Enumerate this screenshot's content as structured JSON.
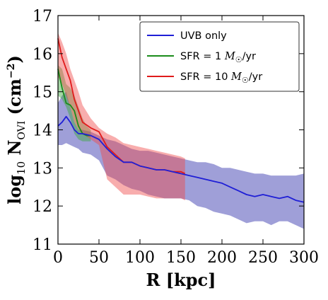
{
  "chart_data": {
    "type": "line",
    "xlabel": "R [kpc]",
    "ylabel_parts": {
      "base": "log",
      "base_sub": "10",
      "symbol": " N",
      "symbol_sub": "OVI",
      "unit": " (cm",
      "unit_sup": "−2",
      "unit_end": ")"
    },
    "xlim": [
      0,
      300
    ],
    "ylim": [
      11,
      17
    ],
    "xticks": [
      0,
      50,
      100,
      150,
      200,
      250,
      300
    ],
    "yticks": [
      11,
      12,
      13,
      14,
      15,
      16,
      17
    ],
    "grid": false,
    "legend_position": "top-right",
    "series": [
      {
        "name": "UVB only",
        "label_parts": {
          "pre": "UVB only",
          "math": "",
          "msub": "",
          "post": ""
        },
        "color": "#1f1fd6",
        "fill": "#2a2aa8",
        "x": [
          0,
          5,
          10,
          15,
          20,
          25,
          30,
          40,
          50,
          60,
          70,
          80,
          90,
          100,
          110,
          120,
          130,
          140,
          150,
          160,
          170,
          180,
          190,
          200,
          210,
          220,
          230,
          240,
          250,
          260,
          270,
          280,
          290,
          300
        ],
        "y": [
          14.1,
          14.2,
          14.35,
          14.2,
          14.0,
          13.9,
          13.9,
          13.85,
          13.75,
          13.5,
          13.3,
          13.15,
          13.15,
          13.05,
          13.0,
          12.95,
          12.95,
          12.9,
          12.85,
          12.8,
          12.75,
          12.7,
          12.65,
          12.6,
          12.5,
          12.4,
          12.3,
          12.25,
          12.3,
          12.25,
          12.2,
          12.25,
          12.15,
          12.1
        ],
        "y_low": [
          13.6,
          13.6,
          13.65,
          13.6,
          13.55,
          13.5,
          13.4,
          13.35,
          13.2,
          12.8,
          12.7,
          12.55,
          12.45,
          12.4,
          12.3,
          12.25,
          12.2,
          12.2,
          12.2,
          12.15,
          12.0,
          11.95,
          11.85,
          11.8,
          11.75,
          11.65,
          11.55,
          11.6,
          11.6,
          11.5,
          11.6,
          11.6,
          11.5,
          11.4
        ],
        "y_high": [
          14.7,
          14.9,
          15.0,
          14.6,
          14.2,
          14.0,
          14.0,
          13.95,
          13.85,
          13.75,
          13.7,
          13.6,
          13.5,
          13.45,
          13.45,
          13.4,
          13.35,
          13.3,
          13.25,
          13.2,
          13.15,
          13.15,
          13.1,
          13.0,
          13.0,
          12.95,
          12.9,
          12.85,
          12.85,
          12.8,
          12.8,
          12.8,
          12.8,
          12.85
        ]
      },
      {
        "name": "SFR = 1 M☉/yr",
        "label_parts": {
          "pre": "SFR = 1 ",
          "math": "M",
          "msub": "☉",
          "post": "/yr"
        },
        "color": "#1b8c1b",
        "fill": "#3aa83a",
        "x": [
          0,
          5,
          10,
          15,
          20,
          25,
          30,
          35,
          40
        ],
        "y": [
          15.6,
          15.1,
          14.7,
          14.65,
          14.5,
          14.1,
          13.9,
          13.85,
          13.85
        ],
        "y_low": [
          14.9,
          14.8,
          14.6,
          14.3,
          13.9,
          13.75,
          13.7,
          13.7,
          13.7
        ],
        "y_high": [
          15.7,
          15.6,
          15.2,
          15.1,
          14.9,
          14.6,
          14.3,
          14.1,
          14.0
        ]
      },
      {
        "name": "SFR = 10 M☉/yr",
        "label_parts": {
          "pre": "SFR = 10 ",
          "math": "M",
          "msub": "☉",
          "post": "/yr"
        },
        "color": "#e01b1b",
        "fill": "#f04a4a",
        "x": [
          0,
          5,
          10,
          15,
          20,
          25,
          30,
          40,
          50,
          60,
          70,
          80,
          90,
          100,
          110,
          120,
          130,
          140,
          150,
          155
        ],
        "y": [
          16.4,
          15.9,
          15.6,
          15.3,
          14.8,
          14.5,
          14.2,
          14.05,
          13.95,
          13.55,
          13.35,
          13.15,
          13.15,
          13.05,
          13.0,
          12.95,
          12.95,
          12.9,
          12.9,
          12.85
        ],
        "y_low": [
          15.4,
          15.2,
          14.9,
          14.6,
          14.2,
          14.0,
          13.9,
          13.75,
          13.6,
          12.7,
          12.5,
          12.3,
          12.3,
          12.3,
          12.25,
          12.2,
          12.2,
          12.2,
          12.2,
          12.15
        ],
        "y_high": [
          16.55,
          16.3,
          16.0,
          15.6,
          15.3,
          15.0,
          14.65,
          14.3,
          14.05,
          13.9,
          13.8,
          13.65,
          13.6,
          13.55,
          13.5,
          13.45,
          13.4,
          13.35,
          13.3,
          13.25
        ]
      }
    ]
  }
}
